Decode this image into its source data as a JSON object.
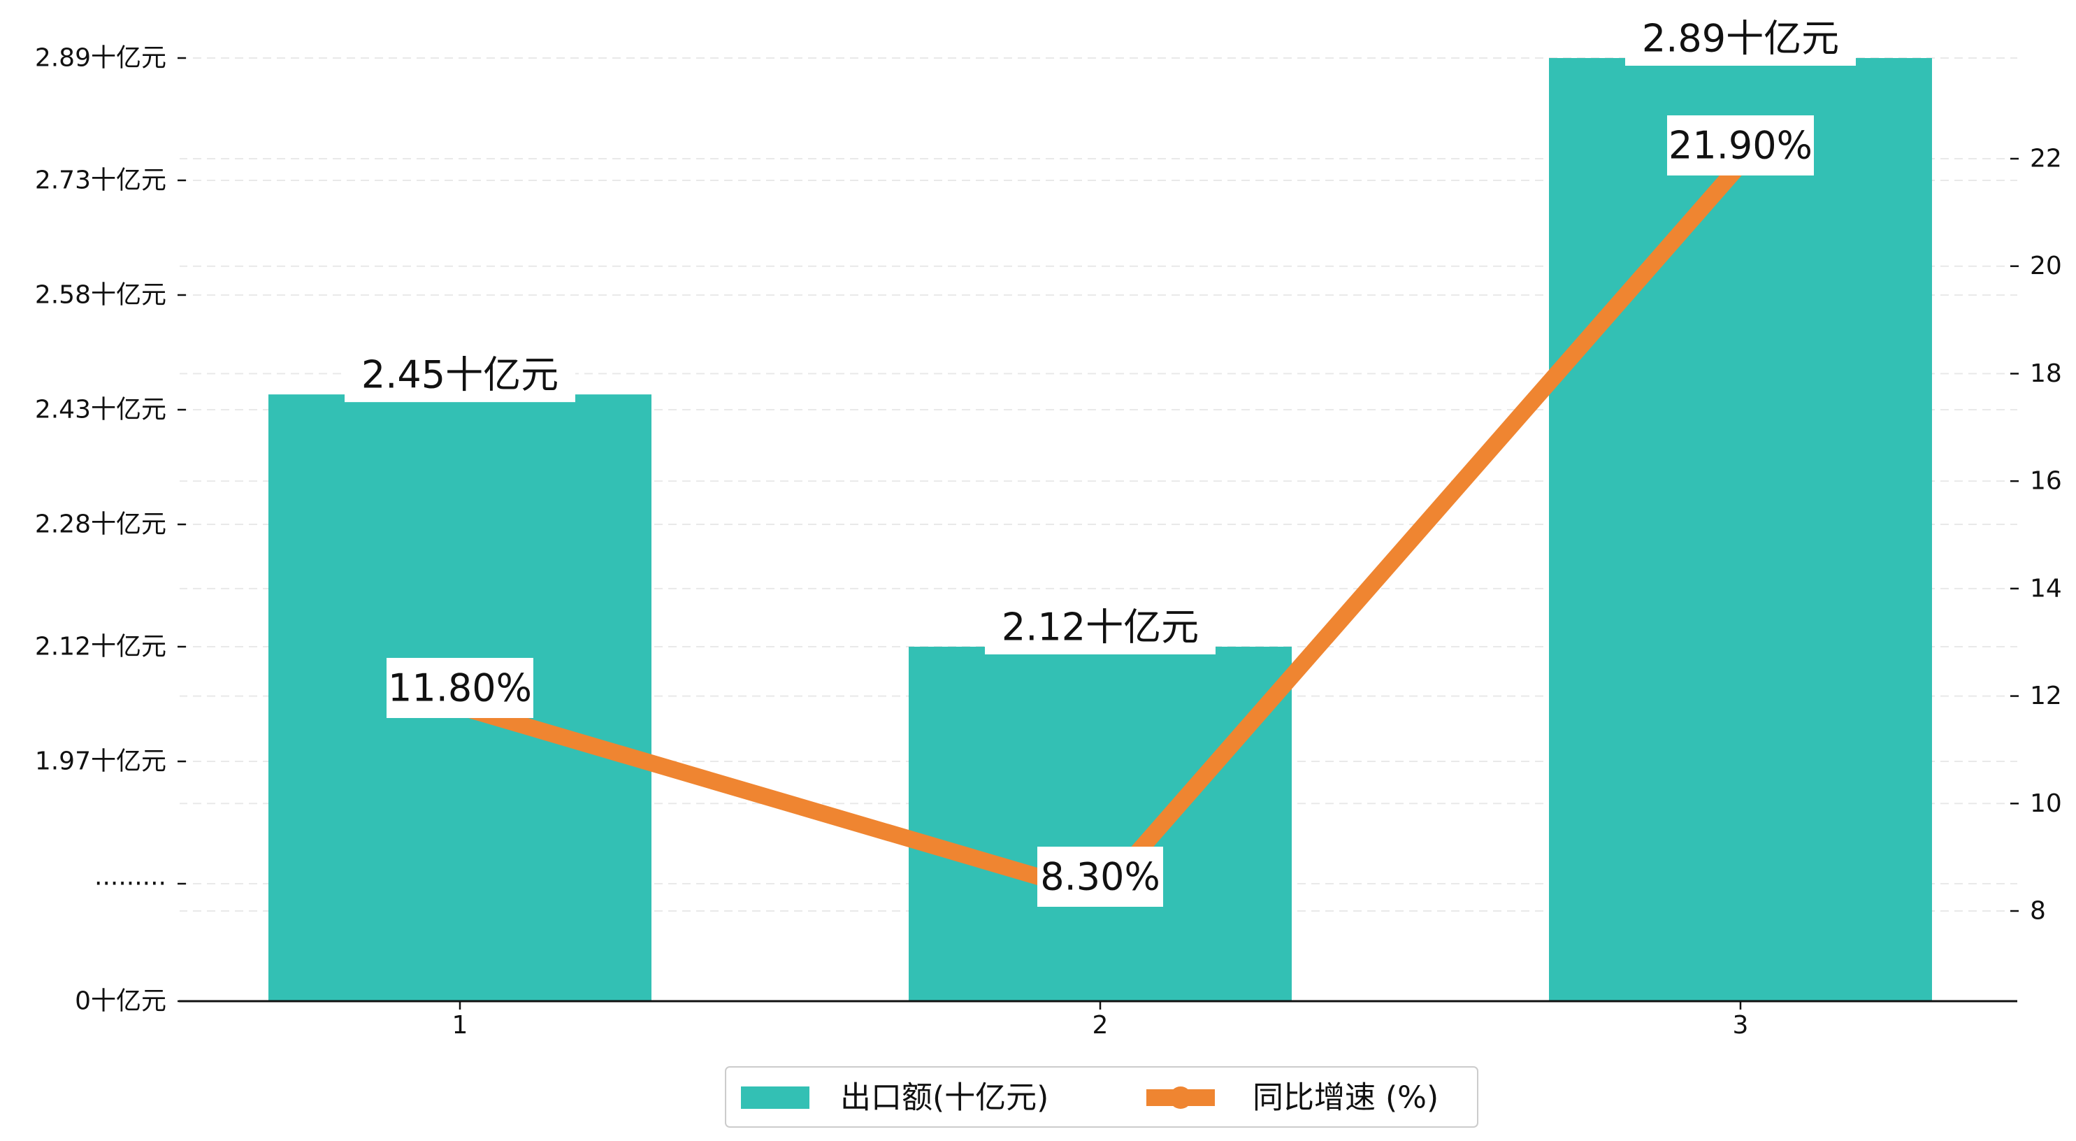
{
  "chart_data": {
    "type": "bar",
    "categories": [
      "1",
      "2",
      "3"
    ],
    "series": [
      {
        "name": "出口额(十亿元)",
        "type": "bar",
        "axis": "left",
        "values": [
          2.45,
          2.12,
          2.89
        ],
        "labels": [
          "2.45十亿元",
          "2.12十亿元",
          "2.89十亿元"
        ],
        "color": "#33c0b4"
      },
      {
        "name": "同比增速 (%)",
        "type": "line",
        "axis": "right",
        "values": [
          11.8,
          8.3,
          21.9
        ],
        "labels": [
          "11.80%",
          "8.30%",
          "21.90%"
        ],
        "color": "#ef8531"
      }
    ],
    "y_left": {
      "ticks": [
        {
          "value": 0,
          "label": "0十亿元"
        },
        {
          "value": 1.81,
          "label": "·········"
        },
        {
          "value": 1.97,
          "label": "1.97十亿元"
        },
        {
          "value": 2.12,
          "label": "2.12十亿元"
        },
        {
          "value": 2.28,
          "label": "2.28十亿元"
        },
        {
          "value": 2.43,
          "label": "2.43十亿元"
        },
        {
          "value": 2.58,
          "label": "2.58十亿元"
        },
        {
          "value": 2.73,
          "label": "2.73十亿元"
        },
        {
          "value": 2.89,
          "label": "2.89十亿元"
        }
      ],
      "broken_axis": true
    },
    "y_right": {
      "ylim": [
        6.3,
        24.1
      ],
      "ticks": [
        8,
        10,
        12,
        14,
        16,
        18,
        20,
        22
      ]
    },
    "grid": true,
    "legend": "bottom-center"
  }
}
